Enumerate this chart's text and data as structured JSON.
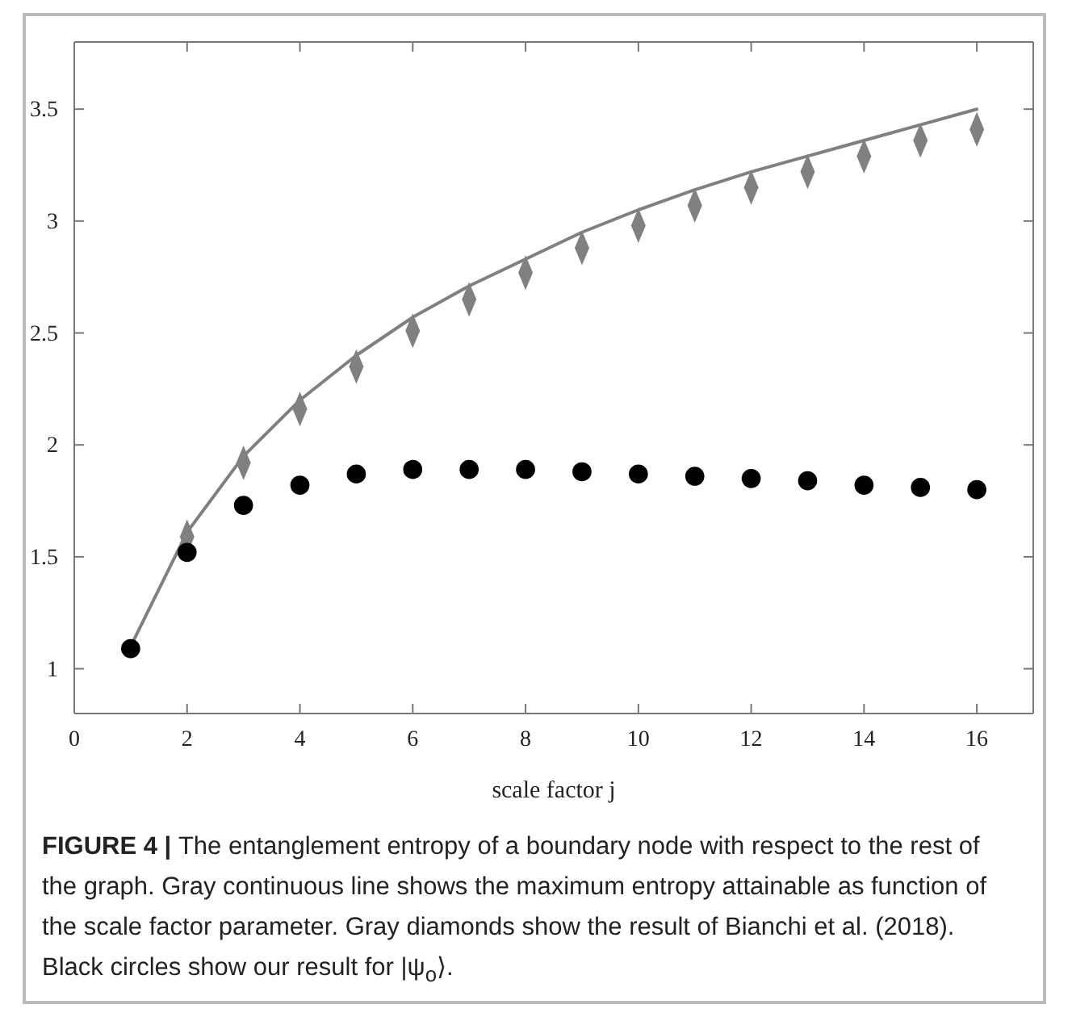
{
  "chart_data": {
    "type": "scatter",
    "xlabel": "scale factor j",
    "xlim": [
      0,
      17
    ],
    "ylim": [
      0.8,
      3.8
    ],
    "xticks": [
      0,
      2,
      4,
      6,
      8,
      10,
      12,
      14,
      16
    ],
    "yticks": [
      1,
      1.5,
      2,
      2.5,
      3,
      3.5
    ],
    "grid": false,
    "x": [
      1,
      2,
      3,
      4,
      5,
      6,
      7,
      8,
      9,
      10,
      11,
      12,
      13,
      14,
      15,
      16
    ],
    "series": [
      {
        "type": "line",
        "color": "#808080",
        "marker": "none",
        "line_style": "solid",
        "values": [
          1.1,
          1.61,
          1.95,
          2.2,
          2.4,
          2.57,
          2.71,
          2.83,
          2.95,
          3.05,
          3.14,
          3.22,
          3.29,
          3.36,
          3.43,
          3.5
        ]
      },
      {
        "color": "#808080",
        "marker": "diamond",
        "values": [
          null,
          1.59,
          1.92,
          2.16,
          2.35,
          2.51,
          2.65,
          2.77,
          2.88,
          2.98,
          3.07,
          3.15,
          3.22,
          3.29,
          3.36,
          3.41
        ]
      },
      {
        "color": "#000000",
        "marker": "circle",
        "values": [
          1.09,
          1.52,
          1.73,
          1.82,
          1.87,
          1.89,
          1.89,
          1.89,
          1.88,
          1.87,
          1.86,
          1.85,
          1.84,
          1.82,
          1.81,
          1.8
        ]
      }
    ],
    "annotations": [
      "FIGURE 4 |",
      "The entanglement entropy of a boundary node with respect to the rest of the graph. Gray continuous line shows the maximum entropy attainable as function of the scale factor parameter. Gray diamonds show the result of Bianchi et al. (2018). Black circles show our result for |ψ$_{o}$⟩."
    ]
  }
}
